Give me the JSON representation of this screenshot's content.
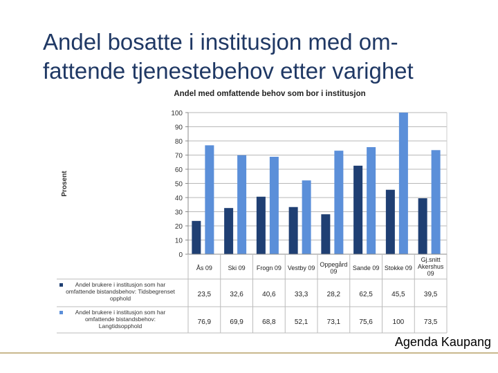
{
  "slide": {
    "title_line1": "Andel bosatte i institusjon med om-",
    "title_line2": "fattende tjenestebehov etter varighet",
    "brand": "Agenda Kaupang"
  },
  "colors": {
    "series1": "#1f3f73",
    "series2": "#5b8fd9",
    "grid": "#b7b7b7",
    "title": "#1f3864"
  },
  "chart_data": {
    "type": "bar",
    "title": "Andel med omfattende behov som bor i institusjon",
    "ylabel": "Prosent",
    "xlabel": "",
    "ylim": [
      0,
      100
    ],
    "yticks": [
      0,
      10,
      20,
      30,
      40,
      50,
      60,
      70,
      80,
      90,
      100
    ],
    "grid": true,
    "categories": [
      "Ås 09",
      "Ski 09",
      "Frogn 09",
      "Vestby 09",
      "Oppegård 09",
      "Sande 09",
      "Stokke 09",
      "Gj.snitt Akershus 09"
    ],
    "series": [
      {
        "name": "Andel brukere i institusjon som har omfattende bistandsbehov: Tidsbegrenset opphold",
        "values": [
          23.5,
          32.6,
          40.6,
          33.3,
          28.2,
          62.5,
          45.5,
          39.5
        ],
        "labels": [
          "23,5",
          "32,6",
          "40,6",
          "33,3",
          "28,2",
          "62,5",
          "45,5",
          "39,5"
        ]
      },
      {
        "name": "Andel brukere i institusjon som har omfattende bistandsbehov: Langtidsopphold",
        "values": [
          76.9,
          69.9,
          68.8,
          52.1,
          73.1,
          75.6,
          100,
          73.5
        ],
        "labels": [
          "76,9",
          "69,9",
          "68,8",
          "52,1",
          "73,1",
          "75,6",
          "100",
          "73,5"
        ]
      }
    ]
  }
}
